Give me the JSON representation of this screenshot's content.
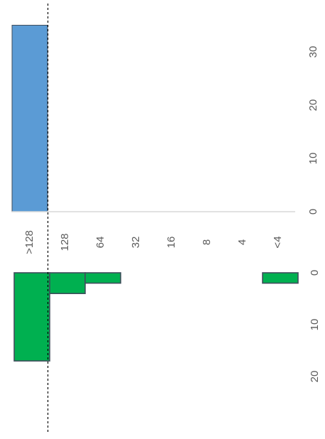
{
  "colors": {
    "blue_bar": "#5b9bd5",
    "green_bar": "#00b050",
    "bar_stroke": "#404e5c",
    "axis": "#d9d9d9",
    "text": "#595959",
    "dashed_line": "#000000"
  },
  "chart_data": [
    {
      "type": "bar",
      "orientation": "horizontal",
      "categories": [
        ">128",
        "128",
        "64",
        "32",
        "16",
        "8",
        "4",
        "<4"
      ],
      "values": [
        35,
        0,
        0,
        0,
        0,
        0,
        0,
        0
      ],
      "value_axis_ticks": [
        "0",
        "10",
        "20",
        "30"
      ],
      "xlim": [
        0,
        35
      ],
      "grid": false,
      "reference_line": "dashed at category boundary >128 / 128"
    },
    {
      "type": "bar",
      "orientation": "horizontal",
      "categories": [
        ">128",
        "128",
        "64",
        "32",
        "16",
        "8",
        "4",
        "<4"
      ],
      "values": [
        17,
        4,
        2,
        0,
        0,
        0,
        0,
        2
      ],
      "value_axis_ticks": [
        "0",
        "10",
        "20"
      ],
      "xlim": [
        0,
        20
      ],
      "grid": false,
      "reference_line": "dashed at category boundary >128 / 128"
    }
  ]
}
